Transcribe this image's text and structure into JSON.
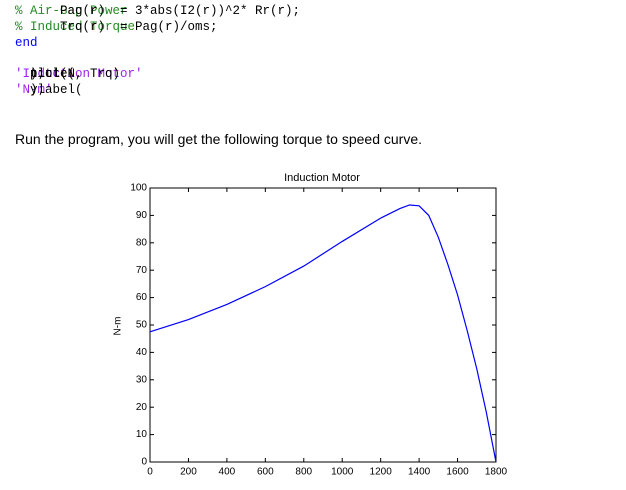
{
  "code_block_1": [
    [
      {
        "text": "    Pag(r)  = 3*abs(I2(r))^2* Rr(r); ",
        "kind": "code"
      },
      {
        "text": "% Air-Gap Power",
        "kind": "comment"
      }
    ],
    [
      {
        "text": "    Trq(r)  = Pag(r)/oms; ",
        "kind": "code"
      },
      {
        "text": "% Induced Torque",
        "kind": "comment"
      }
    ],
    [
      {
        "text": "end",
        "kind": "keyword"
      }
    ]
  ],
  "code_block_2": [
    [
      {
        "text": "plot(N, Trq)",
        "kind": "code"
      }
    ],
    [
      {
        "text": "title(",
        "kind": "code"
      },
      {
        "text": "'Induction Motor'",
        "kind": "string"
      },
      {
        "text": ");",
        "kind": "code"
      }
    ],
    [
      {
        "text": "ylabel(",
        "kind": "code"
      },
      {
        "text": "'N-m'",
        "kind": "string"
      },
      {
        "text": ");",
        "kind": "code"
      }
    ]
  ],
  "paragraph": "Run the program, you will get the following torque to speed curve.",
  "chart_data": {
    "type": "line",
    "title": "Induction Motor",
    "ylabel": "N-m",
    "color": "#0000ff",
    "x": [
      0,
      200,
      400,
      600,
      800,
      1000,
      1200,
      1300,
      1350,
      1400,
      1450,
      1500,
      1550,
      1600,
      1650,
      1700,
      1750,
      1800
    ],
    "values": [
      47.5,
      52,
      57.5,
      64,
      71.5,
      80.5,
      89,
      92.5,
      93.8,
      93.5,
      90,
      82,
      72,
      61,
      48,
      34,
      18,
      0
    ],
    "xlim": [
      0,
      1800
    ],
    "ylim": [
      0,
      100
    ],
    "xticks": [
      0,
      200,
      400,
      600,
      800,
      1000,
      1200,
      1400,
      1600,
      1800
    ],
    "yticks": [
      0,
      10,
      20,
      30,
      40,
      50,
      60,
      70,
      80,
      90,
      100
    ]
  }
}
